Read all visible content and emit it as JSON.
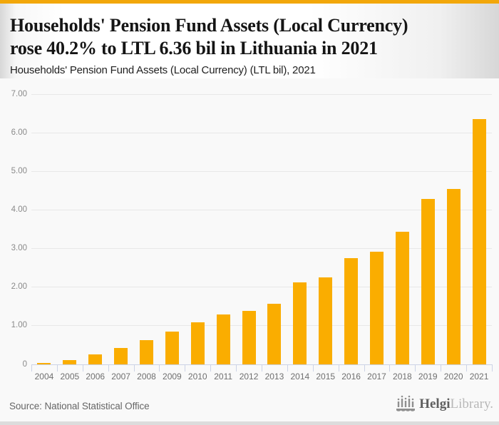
{
  "header": {
    "title_line1": "Households' Pension Fund Assets (Local Currency)",
    "title_line2": "rose 40.2% to LTL 6.36 bil in Lithuania in 2021",
    "subtitle": "Households' Pension Fund Assets (Local Currency) (LTL bil), 2021"
  },
  "chart_data": {
    "type": "bar",
    "title": "Households' Pension Fund Assets (Local Currency) (LTL bil), 2021",
    "categories": [
      "2004",
      "2005",
      "2006",
      "2007",
      "2008",
      "2009",
      "2010",
      "2011",
      "2012",
      "2013",
      "2014",
      "2015",
      "2016",
      "2017",
      "2018",
      "2019",
      "2020",
      "2021"
    ],
    "values": [
      0.04,
      0.11,
      0.25,
      0.43,
      0.63,
      0.85,
      1.09,
      1.3,
      1.38,
      1.57,
      2.13,
      2.26,
      2.75,
      2.92,
      3.44,
      4.28,
      4.54,
      6.36
    ],
    "unit": "LTL bil",
    "xlabel": "",
    "ylabel": "",
    "ylim": [
      0,
      7
    ],
    "yticks": [
      0,
      1,
      2,
      3,
      4,
      5,
      6,
      7
    ],
    "ytick_labels": [
      "0",
      "1.00",
      "2.00",
      "3.00",
      "4.00",
      "5.00",
      "6.00",
      "7.00"
    ],
    "grid": true,
    "legend": false,
    "bar_color": "#FAAD00"
  },
  "footer": {
    "source": "Source: National Statistical Office",
    "logo_bold": "Helgi",
    "logo_light": "Library."
  },
  "colors": {
    "accent_strip": "#F2A70A",
    "bar": "#FAAD00",
    "chart_background": "#F9F9F9",
    "gridline": "#E8E8E8",
    "axis": "#CCD3E6",
    "ytick_text": "#8A8A8A",
    "xtick_text": "#6F6F6F",
    "title_text": "#151515",
    "source_text": "#666666"
  }
}
